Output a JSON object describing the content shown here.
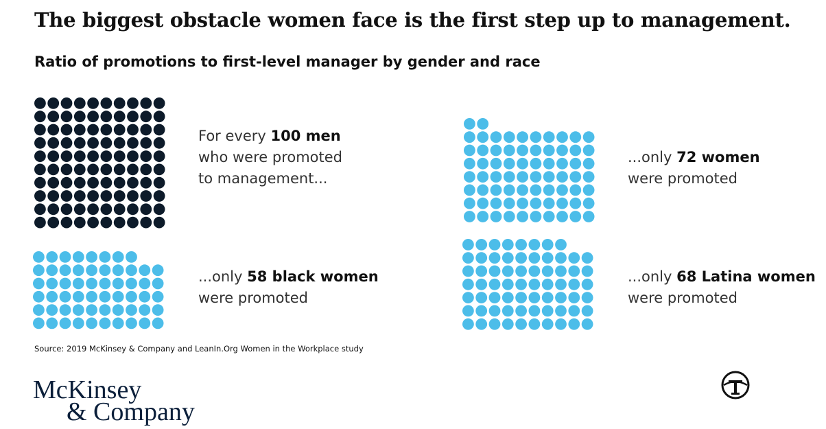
{
  "header": {
    "title": "The biggest obstacle women face is the first step up to management.",
    "subtitle": "Ratio of promotions to first-level manager by gender and race"
  },
  "colors": {
    "men": "#0d1b2a",
    "women": "#4cbde9"
  },
  "chart_data": {
    "type": "waffle",
    "title": "The biggest obstacle women face is the first step up to management.",
    "subtitle": "Ratio of promotions to first-level manager by gender and race",
    "categories": [
      "men",
      "women",
      "black women",
      "Latina women"
    ],
    "values": [
      100,
      72,
      58,
      68
    ],
    "unit_per_dot": 1,
    "columns_per_grid": 10,
    "panels": [
      {
        "name": "men",
        "value": 100,
        "color": "#0d1b2a",
        "text_pre": "For every ",
        "text_bold": "100 men",
        "text_post": "",
        "line2": "who were promoted",
        "line3": "to management..."
      },
      {
        "name": "women",
        "value": 72,
        "color": "#4cbde9",
        "text_pre": "...only ",
        "text_bold": "72 women",
        "text_post": "",
        "line2": "were promoted",
        "line3": ""
      },
      {
        "name": "black women",
        "value": 58,
        "color": "#4cbde9",
        "text_pre": "...only ",
        "text_bold": "58 black women",
        "text_post": "",
        "line2": "were promoted",
        "line3": ""
      },
      {
        "name": "Latina women",
        "value": 68,
        "color": "#4cbde9",
        "text_pre": "...only ",
        "text_bold": "68 Latina women",
        "text_post": "",
        "line2": "were promoted",
        "line3": ""
      }
    ]
  },
  "source": "Source: 2019 McKinsey & Company and LeanIn.Org Women in the Workplace study",
  "logo": {
    "line1": "McKinsey",
    "line2": "& Company"
  },
  "publisher_logo_icon": "t-seal-icon"
}
